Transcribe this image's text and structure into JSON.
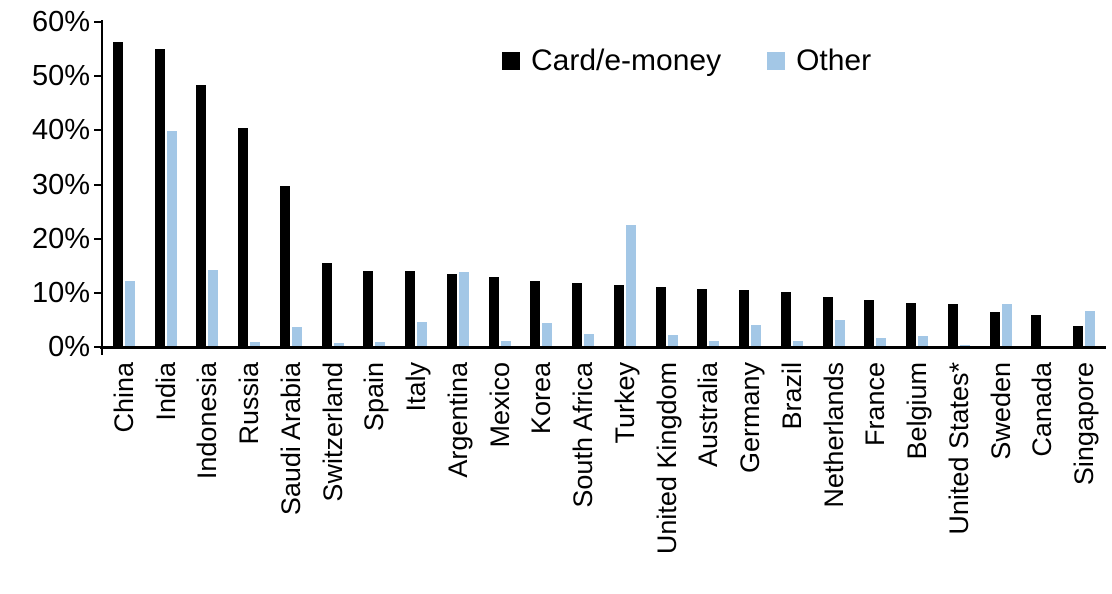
{
  "chart_data": {
    "type": "bar",
    "title": "",
    "xlabel": "",
    "ylabel": "",
    "grid": false,
    "legend_position": "top-center",
    "background_color": "#ffffff",
    "y_axis": {
      "ticks": [
        "0%",
        "10%",
        "20%",
        "30%",
        "40%",
        "50%",
        "60%"
      ],
      "tick_values": [
        0,
        10,
        20,
        30,
        40,
        50,
        60
      ],
      "ylim": [
        0,
        60
      ],
      "unit": "%"
    },
    "categories": [
      "China",
      "India",
      "Indonesia",
      "Russia",
      "Saudi Arabia",
      "Switzerland",
      "Spain",
      "Italy",
      "Argentina",
      "Mexico",
      "Korea",
      "South Africa",
      "Turkey",
      "United Kingdom",
      "Australia",
      "Germany",
      "Brazil",
      "Netherlands",
      "France",
      "Belgium",
      "United States*",
      "Sweden",
      "Canada",
      "Singapore"
    ],
    "series": [
      {
        "name": "Card/e-money",
        "color": "#000000",
        "values": [
          56.3,
          55.0,
          48.3,
          40.5,
          29.8,
          15.5,
          14.1,
          14.1,
          13.4,
          12.9,
          12.2,
          11.8,
          11.5,
          11.1,
          10.8,
          10.6,
          10.1,
          9.3,
          8.7,
          8.2,
          7.9,
          6.4,
          6.0,
          3.9
        ]
      },
      {
        "name": "Other",
        "color": "#A3C7E6",
        "values": [
          12.2,
          39.8,
          14.3,
          0.9,
          3.7,
          0.7,
          1.0,
          4.6,
          13.9,
          1.2,
          4.5,
          2.4,
          22.6,
          2.3,
          1.2,
          4.0,
          1.2,
          4.9,
          1.6,
          2.1,
          0.3,
          8.0,
          0,
          6.7
        ]
      }
    ]
  }
}
